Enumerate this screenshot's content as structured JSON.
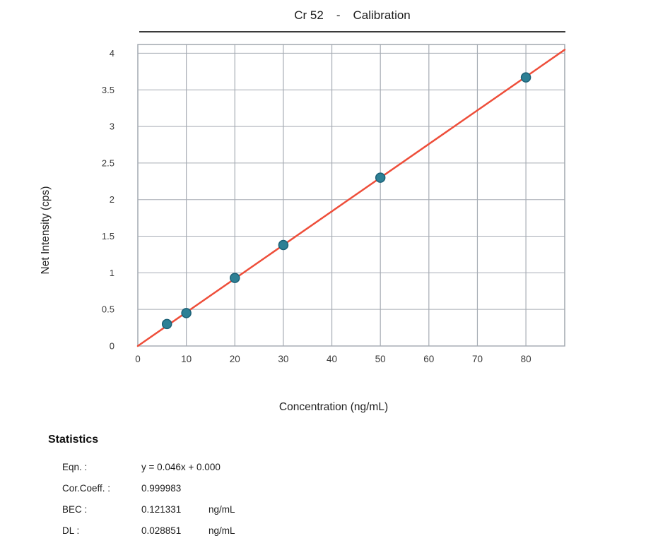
{
  "header": {
    "element_label": "Cr 52",
    "separator": "-",
    "mode_label": "Calibration"
  },
  "chart_data": {
    "type": "scatter",
    "title": "Cr 52 - Calibration",
    "xlabel": "Concentration (ng/mL)",
    "ylabel": "Net Intensity (cps)",
    "xlim": [
      0,
      88
    ],
    "ylim": [
      0,
      4.12
    ],
    "xticks": [
      0,
      10,
      20,
      30,
      40,
      50,
      60,
      70,
      80
    ],
    "yticks": [
      0,
      0.5,
      1,
      1.5,
      2,
      2.5,
      3,
      3.5,
      4
    ],
    "grid": true,
    "legend": "none",
    "points": {
      "x": [
        6,
        10,
        20,
        30,
        50,
        80
      ],
      "y": [
        0.3,
        0.45,
        0.93,
        1.38,
        2.3,
        3.67
      ]
    },
    "fit_line": {
      "slope": 0.046,
      "intercept": 0.0,
      "x_start": 0,
      "x_end": 88
    },
    "colors": {
      "marker_fill": "#2e8095",
      "marker_stroke": "#1c6177",
      "fit_line": "#ee4e3a",
      "grid": "#a6acb4",
      "plot_border": "#9aa1a9"
    }
  },
  "statistics": {
    "header": "Statistics",
    "rows": [
      {
        "label": "Eqn. :",
        "value": "y = 0.046x + 0.000",
        "unit": ""
      },
      {
        "label": "Cor.Coeff. :",
        "value": "0.999983",
        "unit": ""
      },
      {
        "label": "BEC :",
        "value": "0.121331",
        "unit": "ng/mL"
      },
      {
        "label": "DL :",
        "value": "0.028851",
        "unit": "ng/mL"
      }
    ]
  }
}
